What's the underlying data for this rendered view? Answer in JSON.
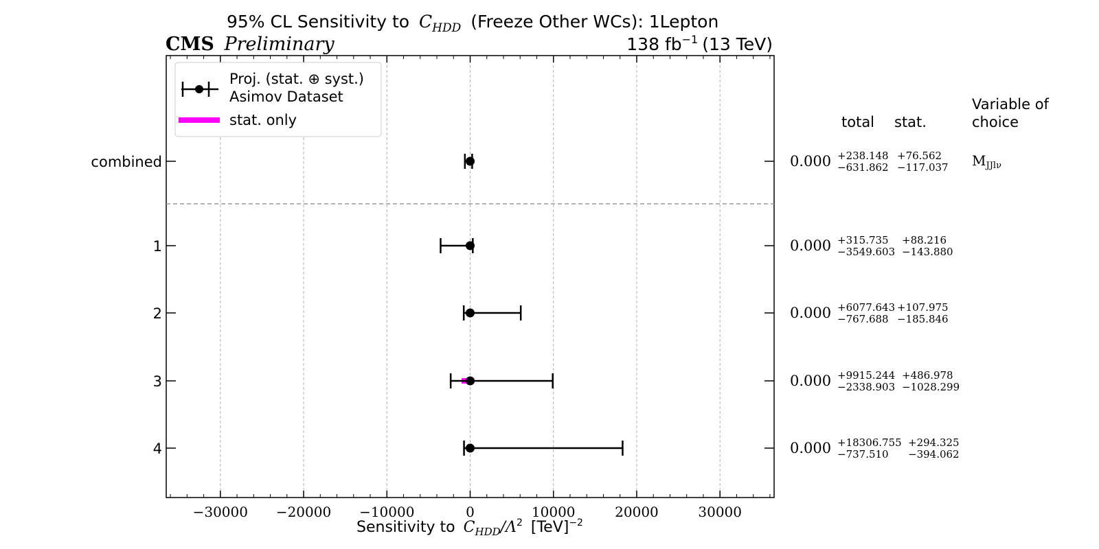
{
  "header": {
    "title_prefix": "95% CL Sensitivity to",
    "title_coef": "C",
    "title_sub": "HDD",
    "title_suffix": "(Freeze Other WCs): 1Lepton",
    "experiment": "CMS",
    "status": "Preliminary",
    "lumi": "138 fb",
    "lumi_exp": "−1",
    "energy": "(13 TeV)"
  },
  "legend": {
    "entry1_line1": "Proj. (stat. ⊕ syst.)",
    "entry1_line2": "Asimov Dataset",
    "entry2": "stat. only"
  },
  "table": {
    "header_total": "total",
    "header_stat": "stat.",
    "header_var_line1": "Variable of",
    "header_var_line2": "choice"
  },
  "axis": {
    "xlabel_prefix": "Sensitivity to",
    "xlabel_coef": "C",
    "xlabel_sub": "HDD",
    "xlabel_mid": "/Λ",
    "xlabel_exp1": "2",
    "xlabel_unit": "[TeV]",
    "xlabel_exp2": "−2"
  },
  "colors": {
    "total": "#000000",
    "stat": "#ff00ff",
    "grid": "#b0b0b0",
    "separator": "#999999"
  },
  "chart_data": {
    "type": "scatter",
    "x_scale": "linear",
    "xlim": [
      -36500,
      36500
    ],
    "xticks": [
      -30000,
      -20000,
      -10000,
      0,
      10000,
      20000,
      30000
    ],
    "xtick_labels": [
      "−30000",
      "−20000",
      "−10000",
      "0",
      "10000",
      "20000",
      "30000"
    ],
    "grid": true,
    "legend_position": "top-left",
    "rows": [
      {
        "label": "combined",
        "value": 0.0,
        "value_text": "0.000",
        "total_up": 238.148,
        "total_down": 631.862,
        "stat_up": 76.562,
        "stat_down": 117.037,
        "total_up_text": "+238.148",
        "total_down_text": "−631.862",
        "stat_up_text": "+76.562",
        "stat_down_text": "−117.037",
        "variable": "M",
        "variable_sub": "JJlν"
      },
      {
        "label": "1",
        "value": 0.0,
        "value_text": "0.000",
        "total_up": 315.735,
        "total_down": 3549.603,
        "stat_up": 88.216,
        "stat_down": 143.88,
        "total_up_text": "+315.735",
        "total_down_text": "−3549.603",
        "stat_up_text": "+88.216",
        "stat_down_text": "−143.880"
      },
      {
        "label": "2",
        "value": 0.0,
        "value_text": "0.000",
        "total_up": 6077.643,
        "total_down": 767.688,
        "stat_up": 107.975,
        "stat_down": 185.846,
        "total_up_text": "+6077.643",
        "total_down_text": "−767.688",
        "stat_up_text": "+107.975",
        "stat_down_text": "−185.846"
      },
      {
        "label": "3",
        "value": 0.0,
        "value_text": "0.000",
        "total_up": 9915.244,
        "total_down": 2338.903,
        "stat_up": 486.978,
        "stat_down": 1028.299,
        "total_up_text": "+9915.244",
        "total_down_text": "−2338.903",
        "stat_up_text": "+486.978",
        "stat_down_text": "−1028.299"
      },
      {
        "label": "4",
        "value": 0.0,
        "value_text": "0.000",
        "total_up": 18306.755,
        "total_down": 737.51,
        "stat_up": 294.325,
        "stat_down": 394.062,
        "total_up_text": "+18306.755",
        "total_down_text": "−737.510",
        "stat_up_text": "+294.325",
        "stat_down_text": "−394.062"
      }
    ]
  }
}
